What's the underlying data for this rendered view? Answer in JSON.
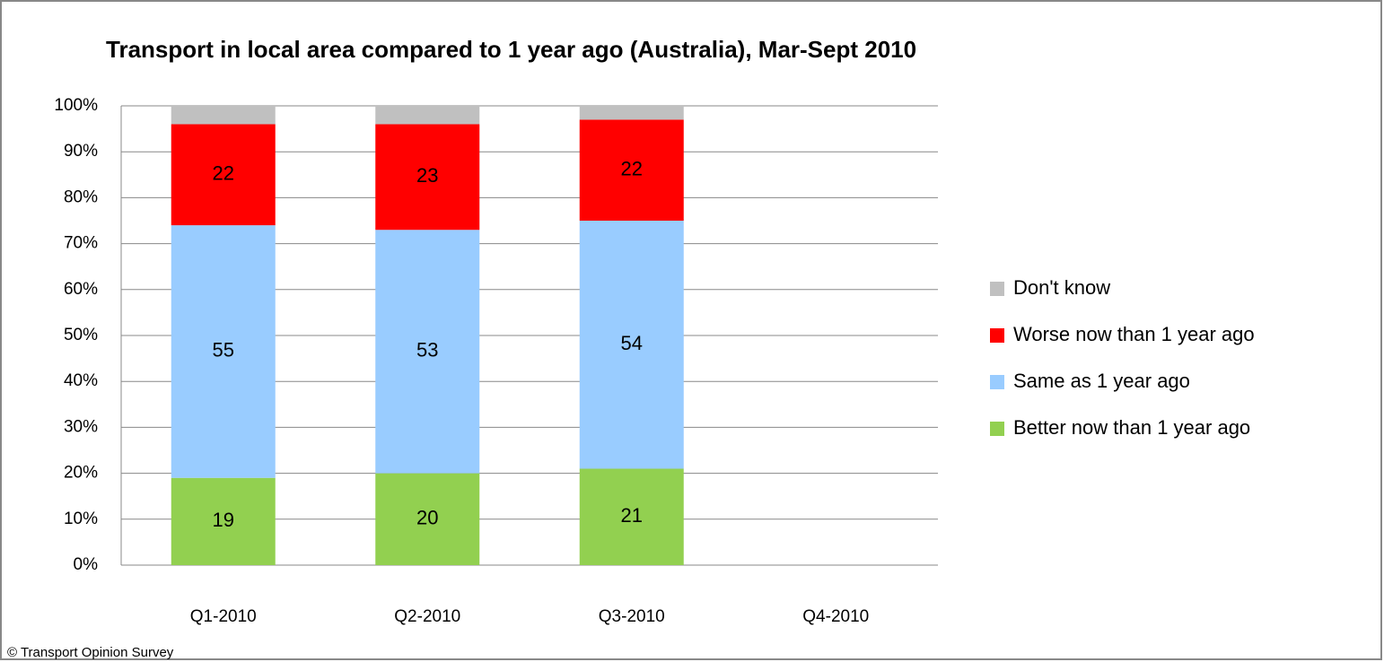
{
  "chart_data": {
    "type": "stacked_bar",
    "title": "Transport in local area compared to 1 year ago (Australia), Mar-Sept 2010",
    "categories": [
      "Q1-2010",
      "Q2-2010",
      "Q3-2010",
      "Q4-2010"
    ],
    "series": [
      {
        "name": "Better now than 1 year ago",
        "color": "#92d050",
        "values": [
          19,
          20,
          21,
          null
        ],
        "show_labels": true
      },
      {
        "name": "Same as 1 year ago",
        "color": "#99ccff",
        "values": [
          55,
          53,
          54,
          null
        ],
        "show_labels": true
      },
      {
        "name": "Worse now than 1 year ago",
        "color": "#ff0000",
        "values": [
          22,
          23,
          22,
          null
        ],
        "show_labels": true
      },
      {
        "name": "Don't know",
        "color": "#c0c0c0",
        "values": [
          4,
          4,
          3,
          null
        ],
        "show_labels": false
      }
    ],
    "ylim": [
      0,
      100
    ],
    "yticks": [
      {
        "value": 0,
        "label": "0%"
      },
      {
        "value": 10,
        "label": "10%"
      },
      {
        "value": 20,
        "label": "20%"
      },
      {
        "value": 30,
        "label": "30%"
      },
      {
        "value": 40,
        "label": "40%"
      },
      {
        "value": 50,
        "label": "50%"
      },
      {
        "value": 60,
        "label": "60%"
      },
      {
        "value": 70,
        "label": "70%"
      },
      {
        "value": 80,
        "label": "80%"
      },
      {
        "value": 90,
        "label": "90%"
      },
      {
        "value": 100,
        "label": "100%"
      }
    ],
    "grid": true,
    "legend": "right",
    "source": "© Transport Opinion Survey"
  }
}
